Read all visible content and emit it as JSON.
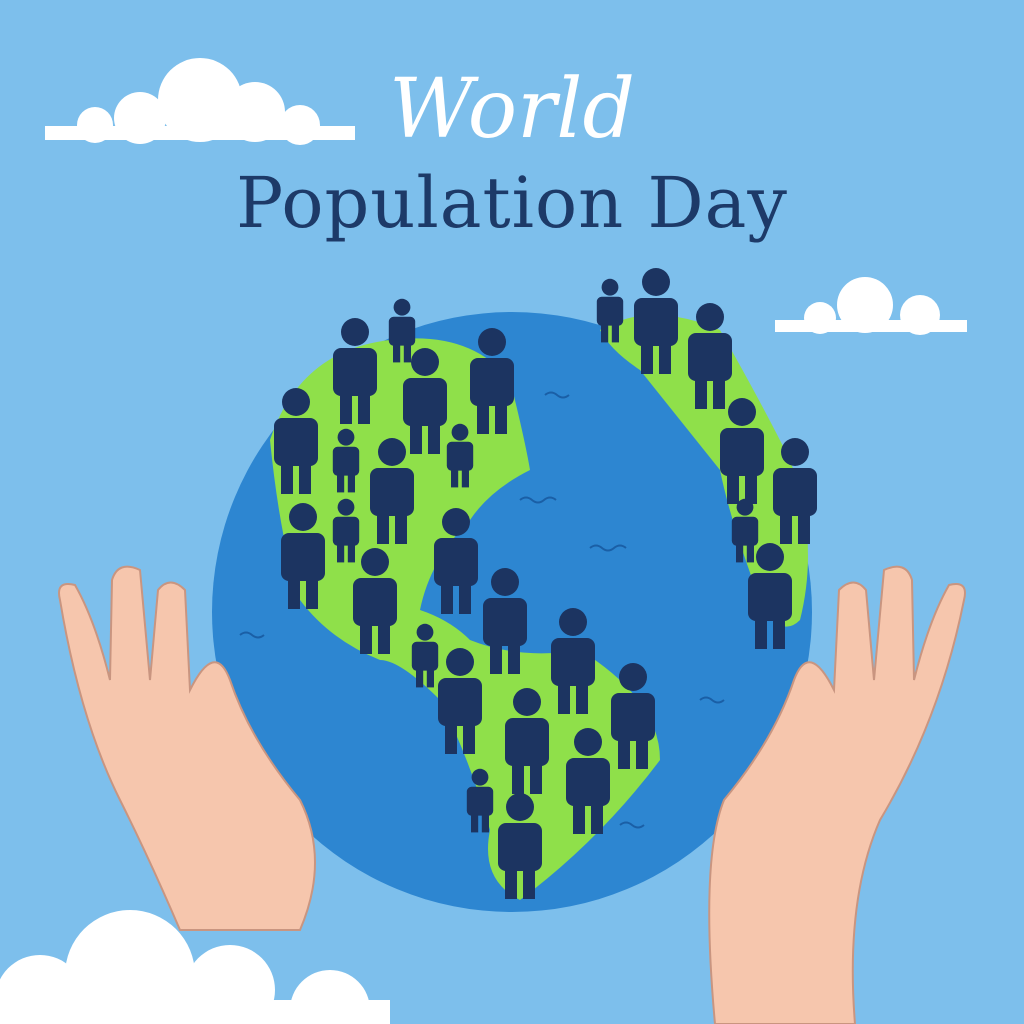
{
  "poster": {
    "title_line1": "World",
    "title_line2": "Population Day"
  },
  "colors": {
    "background": "#7dbfec",
    "ocean": "#2d86d1",
    "land": "#8fe04a",
    "people": "#1c3461",
    "title": "#1d3a68",
    "skin": "#f6c6ad",
    "cloud": "#ffffff"
  },
  "icons": [
    "cloud",
    "globe",
    "person-silhouette",
    "hand"
  ]
}
